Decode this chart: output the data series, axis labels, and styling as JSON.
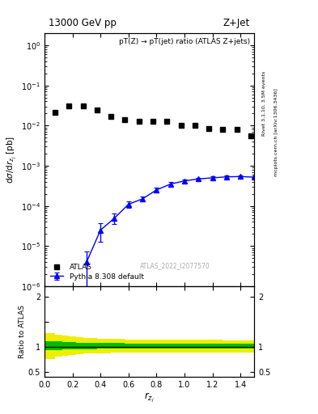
{
  "title_left": "13000 GeV pp",
  "title_right": "Z+Jet",
  "plot_title": "pT(Z) → pT(jet) ratio (ATLAS Z+jets)",
  "ylabel_main": "dσ/dr$_{z_j}$ [pb]",
  "ylabel_ratio": "Ratio to ATLAS",
  "xlabel": "$r_{z_j}$",
  "watermark": "ATLAS_2022_I2077570",
  "right_label_top": "Rivet 3.1.10, 3.5M events",
  "right_label_bot": "mcplots.cern.ch [arXiv:1306.3436]",
  "atlas_x": [
    0.075,
    0.175,
    0.275,
    0.375,
    0.475,
    0.575,
    0.675,
    0.775,
    0.875,
    0.975,
    1.075,
    1.175,
    1.275,
    1.375,
    1.475
  ],
  "atlas_y": [
    0.021,
    0.031,
    0.031,
    0.025,
    0.017,
    0.014,
    0.013,
    0.013,
    0.013,
    0.01,
    0.01,
    0.0085,
    0.0082,
    0.0082,
    0.0055
  ],
  "pythia_x": [
    0.3,
    0.4,
    0.5,
    0.6,
    0.7,
    0.8,
    0.9,
    1.0,
    1.1,
    1.2,
    1.3,
    1.4,
    1.5
  ],
  "pythia_y": [
    4e-06,
    2.5e-05,
    5e-05,
    0.00011,
    0.00015,
    0.00025,
    0.00035,
    0.00042,
    0.00047,
    0.0005,
    0.00053,
    0.00054,
    0.00052
  ],
  "pythia_yerr": [
    3.5e-06,
    1.2e-05,
    1.5e-05,
    2e-05,
    2e-05,
    3e-05,
    4e-05,
    4e-05,
    4e-05,
    4e-05,
    4e-05,
    4e-05,
    4e-05
  ],
  "ratio_x_edges": [
    0.0,
    0.075,
    0.125,
    0.175,
    0.225,
    0.275,
    0.375,
    0.475,
    0.575,
    0.675,
    0.775,
    0.875,
    0.975,
    1.075,
    1.175,
    1.275,
    1.375,
    1.475,
    1.5
  ],
  "ratio_green_lo": [
    0.93,
    0.93,
    0.94,
    0.94,
    0.95,
    0.95,
    0.96,
    0.96,
    0.965,
    0.965,
    0.965,
    0.965,
    0.965,
    0.965,
    0.965,
    0.97,
    0.97,
    0.97
  ],
  "ratio_green_hi": [
    1.1,
    1.1,
    1.09,
    1.09,
    1.08,
    1.08,
    1.07,
    1.07,
    1.065,
    1.065,
    1.065,
    1.065,
    1.065,
    1.065,
    1.065,
    1.06,
    1.06,
    1.06
  ],
  "ratio_yellow_lo": [
    0.75,
    0.8,
    0.82,
    0.83,
    0.85,
    0.86,
    0.87,
    0.875,
    0.88,
    0.88,
    0.88,
    0.88,
    0.88,
    0.88,
    0.88,
    0.88,
    0.88,
    0.88
  ],
  "ratio_yellow_hi": [
    1.27,
    1.24,
    1.22,
    1.2,
    1.18,
    1.17,
    1.16,
    1.15,
    1.14,
    1.14,
    1.14,
    1.14,
    1.14,
    1.14,
    1.14,
    1.13,
    1.13,
    1.13
  ],
  "ylim_main": [
    1e-06,
    2.0
  ],
  "ylim_ratio": [
    0.4,
    2.2
  ],
  "xlim": [
    0.0,
    1.5
  ],
  "atlas_color": "black",
  "pythia_color": "blue",
  "green_color": "#00bb00",
  "yellow_color": "#eeee00",
  "bg_color": "white"
}
